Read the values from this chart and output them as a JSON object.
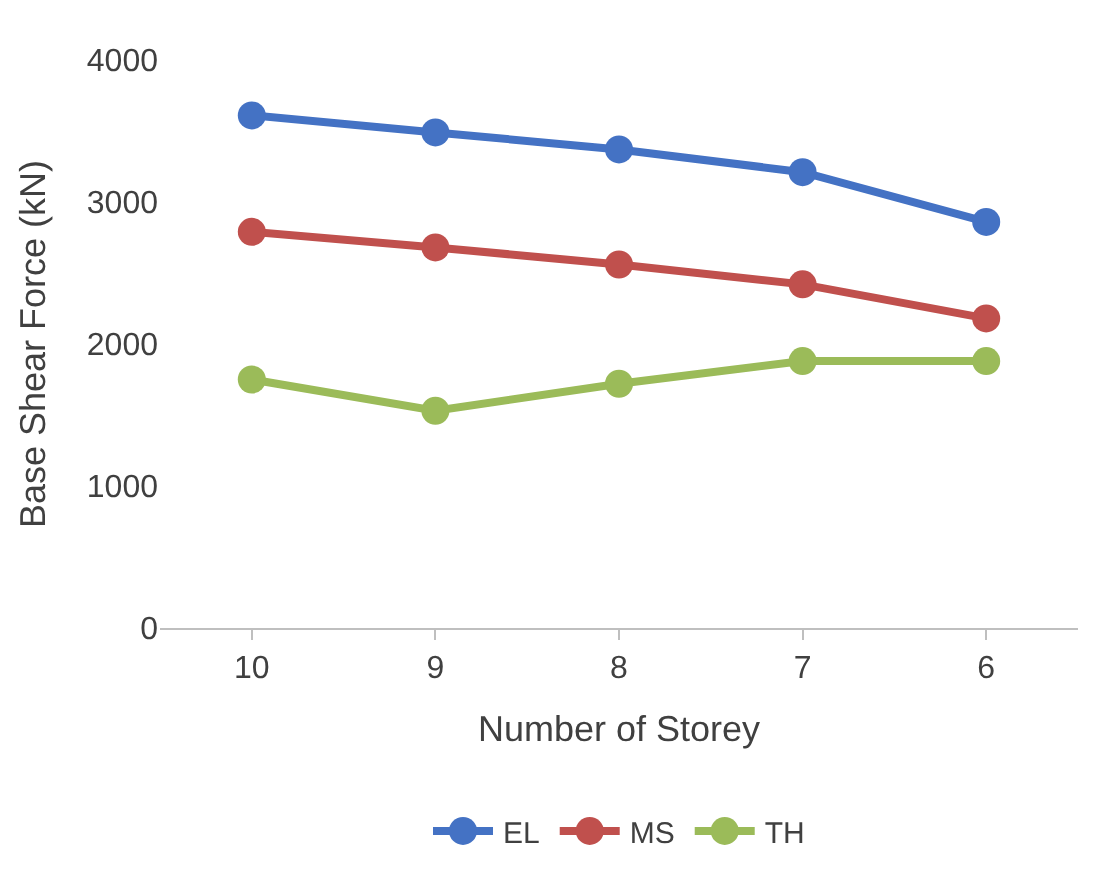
{
  "chart_data": {
    "type": "line",
    "xlabel": "Number of Storey",
    "ylabel": "Base Shear Force (kN)",
    "categories": [
      "10",
      "9",
      "8",
      "7",
      "6"
    ],
    "series": [
      {
        "name": "EL",
        "color": "#4472c4",
        "values": [
          3610,
          3490,
          3370,
          3210,
          2860
        ]
      },
      {
        "name": "MS",
        "color": "#c0504d",
        "values": [
          2790,
          2680,
          2560,
          2420,
          2180
        ]
      },
      {
        "name": "TH",
        "color": "#9bbb59",
        "values": [
          1750,
          1530,
          1720,
          1880,
          1880
        ]
      }
    ],
    "ylim": [
      0,
      4000
    ],
    "yticks": [
      0,
      1000,
      2000,
      3000,
      4000
    ],
    "grid": false,
    "legend": "bottom",
    "marker": "circle",
    "line_style": "solid"
  }
}
